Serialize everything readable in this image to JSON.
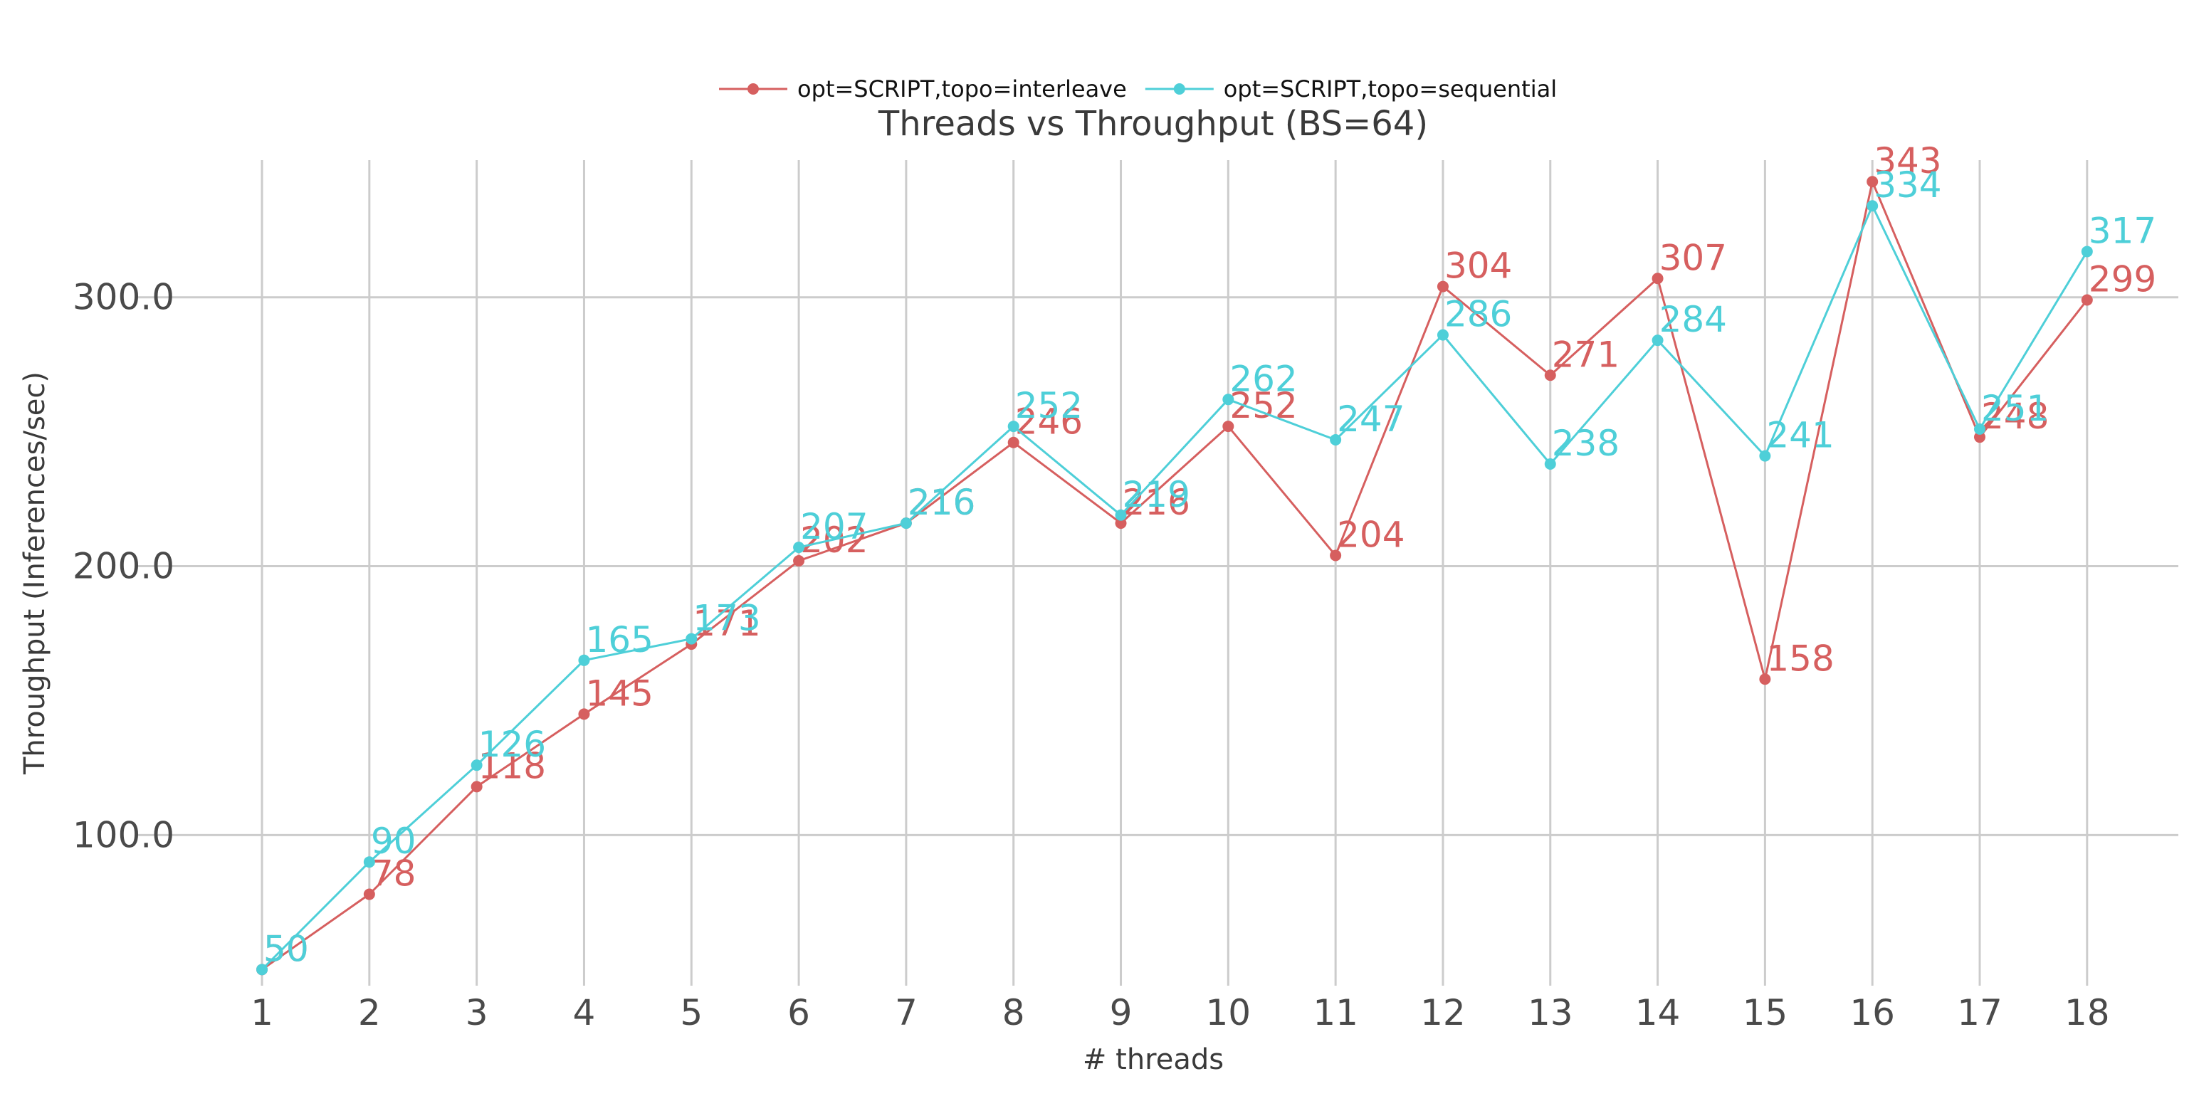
{
  "chart_data": {
    "type": "line",
    "title": "Threads vs Throughput (BS=64)",
    "xlabel": "# threads",
    "ylabel": "Throughput (Inferences/sec)",
    "x": [
      1,
      2,
      3,
      4,
      5,
      6,
      7,
      8,
      9,
      10,
      11,
      12,
      13,
      14,
      15,
      16,
      17,
      18
    ],
    "xlim": [
      0.35,
      18.85
    ],
    "ylim": [
      44,
      351
    ],
    "yticks": [
      100,
      200,
      300
    ],
    "ytick_labels": [
      "100.0",
      "200.0",
      "300.0"
    ],
    "grid": true,
    "legend_position": "top-center",
    "series": [
      {
        "name": "opt=SCRIPT,topo=interleave",
        "color": "#d65f5f",
        "values": [
          50,
          78,
          118,
          145,
          171,
          202,
          216,
          246,
          216,
          252,
          204,
          304,
          271,
          307,
          158,
          343,
          248,
          299
        ]
      },
      {
        "name": "opt=SCRIPT,topo=sequential",
        "color": "#4ecfd8",
        "values": [
          50,
          90,
          126,
          165,
          173,
          207,
          216,
          252,
          219,
          262,
          247,
          286,
          238,
          284,
          241,
          334,
          251,
          317
        ]
      }
    ]
  }
}
